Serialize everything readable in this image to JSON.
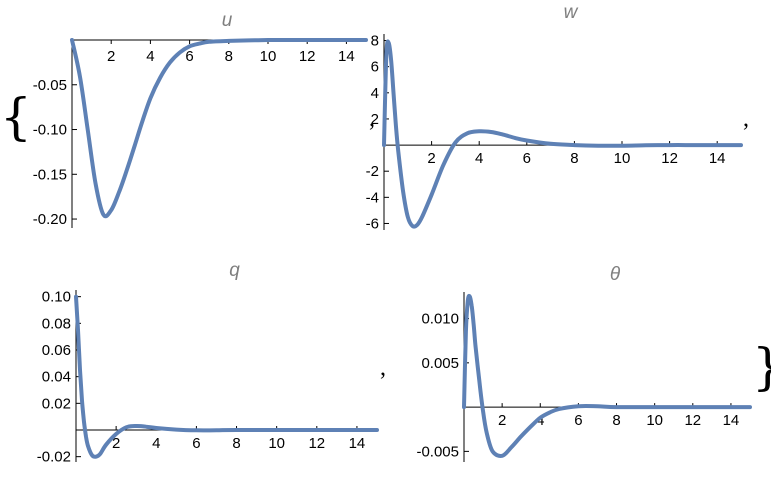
{
  "separators": {
    "open_brace": "{",
    "close_brace": "}",
    "comma": ","
  },
  "colors": {
    "curve": "#5e81b5",
    "axis": "#000000",
    "title": "#7f7f7f"
  },
  "chart_data": [
    {
      "type": "line",
      "title": "u",
      "xlabel": "",
      "ylabel": "",
      "xlim": [
        0,
        15
      ],
      "ylim": [
        -0.21,
        0.0
      ],
      "x_ticks": [
        2,
        4,
        6,
        8,
        10,
        12,
        14
      ],
      "x_tick_labels": [
        "2",
        "4",
        "6",
        "8",
        "10",
        "12",
        "14"
      ],
      "y_ticks": [
        -0.05,
        -0.1,
        -0.15,
        -0.2
      ],
      "y_tick_labels": [
        "-0.05",
        "-0.10",
        "-0.15",
        "-0.20"
      ],
      "series": [
        {
          "x": [
            0,
            0.4,
            0.8,
            1.2,
            1.6,
            2.0,
            2.4,
            2.8,
            3.2,
            3.6,
            4.0,
            4.5,
            5.0,
            5.5,
            6.0,
            6.5,
            7.0,
            8.0,
            9.0,
            10,
            11,
            12,
            13,
            14,
            15
          ],
          "y": [
            0,
            -0.04,
            -0.1,
            -0.16,
            -0.195,
            -0.19,
            -0.17,
            -0.145,
            -0.118,
            -0.09,
            -0.065,
            -0.042,
            -0.025,
            -0.014,
            -0.007,
            -0.004,
            -0.002,
            -0.001,
            -0.0005,
            0,
            0,
            0,
            0,
            0,
            0
          ]
        }
      ]
    },
    {
      "type": "line",
      "title": "w",
      "xlabel": "",
      "ylabel": "",
      "xlim": [
        0,
        15
      ],
      "ylim": [
        -6.5,
        8.5
      ],
      "x_ticks": [
        2,
        4,
        6,
        8,
        10,
        12,
        14
      ],
      "x_tick_labels": [
        "2",
        "4",
        "6",
        "8",
        "10",
        "12",
        "14"
      ],
      "y_ticks": [
        8,
        6,
        4,
        2,
        -2,
        -4,
        -6
      ],
      "y_tick_labels": [
        "8",
        "6",
        "4",
        "2",
        "-2",
        "-4",
        "-6"
      ],
      "series": [
        {
          "x": [
            0,
            0.1,
            0.2,
            0.3,
            0.4,
            0.5,
            0.6,
            0.8,
            1.0,
            1.2,
            1.4,
            1.6,
            2.0,
            2.5,
            3.0,
            3.5,
            4.0,
            4.5,
            5.0,
            5.5,
            6.0,
            7.0,
            8.0,
            9.0,
            10,
            11,
            12,
            13,
            14,
            15
          ],
          "y": [
            0,
            7.0,
            7.8,
            6.5,
            4.0,
            1.5,
            -0.5,
            -3.5,
            -5.5,
            -6.2,
            -6.1,
            -5.5,
            -3.8,
            -1.5,
            0.2,
            0.9,
            1.05,
            1.0,
            0.8,
            0.55,
            0.35,
            0.1,
            0.0,
            -0.05,
            -0.05,
            -0.02,
            0,
            0,
            0,
            0
          ]
        }
      ]
    },
    {
      "type": "line",
      "title": "q",
      "xlabel": "",
      "ylabel": "",
      "xlim": [
        0,
        15
      ],
      "ylim": [
        -0.024,
        0.105
      ],
      "x_ticks": [
        2,
        4,
        6,
        8,
        10,
        12,
        14
      ],
      "x_tick_labels": [
        "2",
        "4",
        "6",
        "8",
        "10",
        "12",
        "14"
      ],
      "y_ticks": [
        0.1,
        0.08,
        0.06,
        0.04,
        0.02,
        -0.02
      ],
      "y_tick_labels": [
        "0.10",
        "0.08",
        "0.06",
        "0.04",
        "0.02",
        "-0.02"
      ],
      "series": [
        {
          "x": [
            0,
            0.1,
            0.2,
            0.3,
            0.4,
            0.5,
            0.6,
            0.8,
            1.0,
            1.2,
            1.5,
            2.0,
            2.5,
            3.0,
            3.5,
            4.0,
            5.0,
            6.0,
            7.0,
            8.0,
            10,
            12,
            15
          ],
          "y": [
            0.1,
            0.075,
            0.045,
            0.022,
            0.006,
            -0.005,
            -0.012,
            -0.019,
            -0.02,
            -0.018,
            -0.011,
            -0.003,
            0.002,
            0.003,
            0.0025,
            0.0015,
            0.0003,
            -0.0002,
            -0.0002,
            0,
            0,
            0,
            0
          ]
        }
      ]
    },
    {
      "type": "line",
      "title": "θ",
      "xlabel": "",
      "ylabel": "",
      "xlim": [
        0,
        15
      ],
      "ylim": [
        -0.0062,
        0.013
      ],
      "x_ticks": [
        2,
        4,
        6,
        8,
        10,
        12,
        14
      ],
      "x_tick_labels": [
        "2",
        "4",
        "6",
        "8",
        "10",
        "12",
        "14"
      ],
      "y_ticks": [
        0.01,
        0.005,
        -0.005
      ],
      "y_tick_labels": [
        "0.010",
        "0.005",
        "-0.005"
      ],
      "series": [
        {
          "x": [
            0,
            0.1,
            0.2,
            0.3,
            0.4,
            0.5,
            0.6,
            0.8,
            1.0,
            1.2,
            1.5,
            2.0,
            2.5,
            3.0,
            3.5,
            4.0,
            4.5,
            5.0,
            6.0,
            7.0,
            8.0,
            10,
            12,
            15
          ],
          "y": [
            0,
            0.0085,
            0.012,
            0.0125,
            0.0115,
            0.0095,
            0.007,
            0.003,
            -0.0005,
            -0.003,
            -0.005,
            -0.0055,
            -0.0045,
            -0.0033,
            -0.0022,
            -0.0012,
            -0.0006,
            -0.0002,
            0.0001,
            0.0001,
            0.0,
            0,
            0,
            0
          ]
        }
      ]
    }
  ]
}
